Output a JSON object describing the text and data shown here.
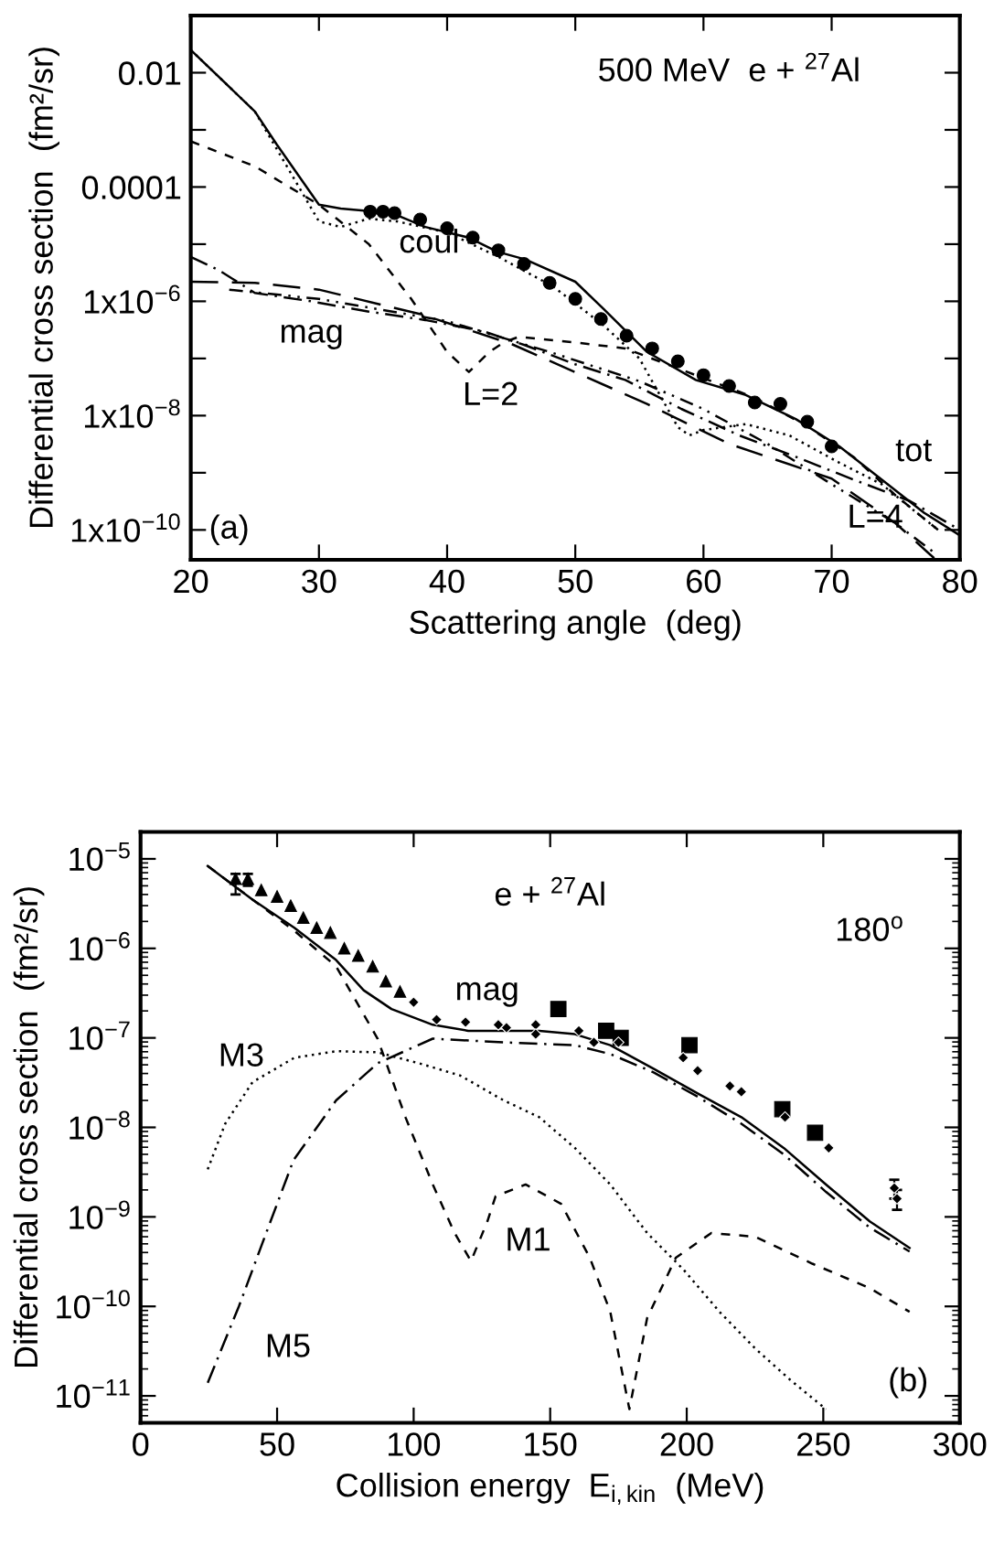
{
  "chart_data": [
    {
      "type": "line",
      "xlabel": "Scattering angle  (deg)",
      "ylabel": "Differential cross section  (fm²/sr)",
      "log": "y",
      "xlim": [
        20,
        80
      ],
      "xticks": [
        20,
        30,
        40,
        50,
        60,
        70,
        80
      ],
      "ylim": [
        3e-11,
        0.1
      ],
      "yticks": [
        {
          "value": 0.1,
          "label": null
        },
        0.01,
        {
          "value": 0.001,
          "label": null
        },
        0.0001,
        {
          "value": 1e-05,
          "label": null
        },
        {
          "value": 1e-06,
          "label": "1x10$^{−6}$"
        },
        {
          "value": 1e-07,
          "label": null
        },
        {
          "value": 1e-08,
          "label": "1x10$^{−8}$"
        },
        {
          "value": 1e-09,
          "label": null
        },
        {
          "value": 1e-10,
          "label": "1x10$^{−10}$"
        }
      ],
      "series": [
        {
          "type": "line",
          "line_style": "solid",
          "color": "#000000",
          "x": [
            20,
            25,
            26.7,
            30,
            31.7,
            33.9,
            36.1,
            38.3,
            41.7,
            43.9,
            46.1,
            50,
            52.2,
            55.6,
            59.4,
            63.3,
            67.2,
            70.6,
            73.9,
            77.2,
            80
          ],
          "values": [
            0.025,
            0.0021,
            0.00056,
            4.9e-05,
            4.2e-05,
            3.8e-05,
            3.2e-05,
            2e-05,
            1.3e-05,
            7.4e-06,
            5.4e-06,
            2.2e-06,
            7.4e-07,
            1.3e-07,
            4.2e-08,
            2.3e-08,
            8.7e-09,
            2.9e-09,
            7.6e-10,
            2e-10,
            8e-11
          ]
        },
        {
          "type": "line",
          "line_style": "dotted",
          "color": "#000000",
          "x": [
            20,
            25,
            30,
            31.7,
            33.9,
            36.1,
            40,
            44,
            48.3,
            52.2,
            55,
            58,
            58.9,
            60,
            63.3,
            66.7,
            70.6,
            73.9,
            76.1,
            78.3
          ],
          "values": [
            0.025,
            0.0021,
            2.5e-05,
            2e-05,
            2.8e-05,
            2.5e-05,
            1.6e-05,
            6e-06,
            1.8e-06,
            3.8e-07,
            1e-07,
            6.3e-09,
            4.5e-09,
            5.6e-09,
            7.1e-09,
            4.5e-09,
            1.5e-09,
            6.3e-10,
            2.5e-10,
            1e-10
          ]
        },
        {
          "type": "line",
          "line_style": "dashed",
          "color": "#000000",
          "x": [
            20,
            25,
            30,
            33.9,
            37.2,
            40,
            41.7,
            43.3,
            44.4,
            45.6,
            50,
            53.9,
            59.4,
            63.9,
            67.8,
            71.7,
            75,
            78.3
          ],
          "values": [
            0.00063,
            0.00023,
            4.9e-05,
            1e-05,
            1.1e-06,
            1.3e-07,
            5.8e-08,
            1.3e-07,
            1.9e-07,
            2.4e-07,
            1.9e-07,
            1.5e-07,
            5.1e-08,
            2.1e-08,
            7.1e-09,
            1.9e-09,
            4e-10,
            1e-10
          ]
        },
        {
          "type": "line",
          "line_style": "dashdot",
          "color": "#000000",
          "x": [
            20,
            22.2,
            25,
            29.4,
            33.9,
            38.3,
            42.8,
            46.1,
            50,
            53.9,
            58.3,
            62.8,
            67.2,
            71.7,
            76.1,
            80
          ],
          "values": [
            6e-06,
            3.5e-06,
            1.4e-06,
            1e-06,
            6.6e-07,
            4.7e-07,
            3e-07,
            1.7e-07,
            7.9e-08,
            4.2e-08,
            1.3e-08,
            4.5e-09,
            1.9e-09,
            7.6e-10,
            3.2e-10,
            1e-10
          ]
        },
        {
          "type": "line",
          "line_style": "longdash",
          "color": "#000000",
          "x": [
            20,
            25,
            30,
            38,
            45,
            55.6,
            62,
            70,
            75,
            78
          ],
          "values": [
            2.2e-06,
            2.1e-06,
            1.6e-06,
            5.9e-07,
            1.8e-07,
            1.6e-08,
            3.2e-09,
            7.9e-10,
            1.3e-10,
            3.2e-11
          ]
        },
        {
          "type": "line",
          "line_style": "dashdotdot",
          "color": "#000000",
          "x": [
            23,
            30,
            40,
            48,
            55,
            60,
            65,
            70,
            75,
            78
          ],
          "values": [
            1.6e-06,
            1.1e-06,
            4.5e-07,
            1.3e-07,
            4e-08,
            1.3e-08,
            3.2e-09,
            6.3e-10,
            1.3e-10,
            4e-11
          ]
        },
        {
          "type": "scatter",
          "marker": "circle",
          "color": "#000000",
          "x": [
            34,
            35,
            35.9,
            37.9,
            40,
            42,
            44,
            46,
            48,
            50,
            52,
            54,
            56,
            58,
            60,
            62,
            64,
            66,
            68.1,
            70
          ],
          "values": [
            3.7e-05,
            3.7e-05,
            3.5e-05,
            2.7e-05,
            1.9e-05,
            1.3e-05,
            7.8e-06,
            4.5e-06,
            2.1e-06,
            1.1e-06,
            4.9e-07,
            2.5e-07,
            1.5e-07,
            8.9e-08,
            5.1e-08,
            3.3e-08,
            1.7e-08,
            1.6e-08,
            7.8e-09,
            2.9e-09
          ]
        }
      ],
      "annotations": [
        "500 MeV  e + $^{27}$Al",
        "coul",
        "mag",
        "L=2",
        "tot",
        "L=4",
        "(a)"
      ]
    },
    {
      "type": "line",
      "xlabel": "Collision energy  E$_{i,kin}$  (MeV)",
      "ylabel": "Differential cross section  (fm²/sr)",
      "log": "y",
      "xlim": [
        0,
        300
      ],
      "xticks": [
        0,
        50,
        100,
        150,
        200,
        250,
        300
      ],
      "ylim": [
        5e-12,
        2e-05
      ],
      "yticks": [
        {
          "value": 1e-05,
          "label": "10$^{−5}$"
        },
        {
          "value": 1e-06,
          "label": "10$^{−6}$"
        },
        {
          "value": 1e-07,
          "label": "10$^{−7}$"
        },
        {
          "value": 1e-08,
          "label": "10$^{−8}$"
        },
        {
          "value": 1e-09,
          "label": "10$^{−9}$"
        },
        {
          "value": 1e-10,
          "label": "10$^{−10}$"
        },
        {
          "value": 1e-11,
          "label": "10$^{−11}$"
        }
      ],
      "series": [
        {
          "type": "line",
          "line_style": "solid",
          "color": "#000000",
          "x": [
            24.6,
            41,
            56.3,
            71.6,
            81.7,
            91.9,
            107,
            120,
            132,
            146,
            159,
            172,
            188,
            204,
            220,
            235.5,
            251,
            267,
            281.6
          ],
          "values": [
            8.3e-06,
            3.5e-06,
            1.7e-06,
            7.4e-07,
            3.4e-07,
            2.1e-07,
            1.4e-07,
            1.2e-07,
            1.2e-07,
            1.2e-07,
            1.1e-07,
            8.3e-08,
            4.5e-08,
            2.4e-08,
            1.3e-08,
            5.9e-09,
            2.3e-09,
            8.9e-10,
            4.5e-10
          ]
        },
        {
          "type": "line",
          "line_style": "dashdot",
          "color": "#000000",
          "x": [
            24.6,
            36,
            46,
            56,
            71.6,
            86.8,
            107,
            133,
            159,
            172,
            188,
            204,
            220,
            235.5,
            251,
            267,
            281.6
          ],
          "values": [
            1.4e-11,
            1e-10,
            6.6e-10,
            4.3e-09,
            2e-08,
            5.2e-08,
            9.8e-08,
            8.9e-08,
            8.3e-08,
            6.6e-08,
            4.1e-08,
            2.2e-08,
            1.1e-08,
            5e-09,
            1.9e-09,
            7.6e-10,
            4.1e-10
          ]
        },
        {
          "type": "line",
          "line_style": "dotted",
          "color": "#000000",
          "x": [
            24.6,
            31,
            41,
            56.3,
            71.6,
            86.8,
            102,
            117,
            133,
            146,
            159,
            172,
            185.5,
            198.7,
            212,
            225,
            238,
            251
          ],
          "values": [
            3.4e-09,
            1.1e-08,
            3.2e-08,
            6e-08,
            7.1e-08,
            6.9e-08,
            5.2e-08,
            3.8e-08,
            2e-08,
            1.3e-08,
            5.9e-09,
            2.3e-09,
            6.6e-10,
            2.6e-10,
            8.7e-11,
            3.4e-11,
            1.5e-11,
            7.1e-12
          ]
        },
        {
          "type": "line",
          "line_style": "dashed",
          "color": "#000000",
          "x": [
            24.6,
            41,
            56,
            71.6,
            86.8,
            97,
            107,
            115,
            121,
            127,
            130,
            141,
            154,
            164.5,
            172,
            179,
            185.5,
            196,
            209,
            225,
            246,
            267,
            281.6
          ],
          "values": [
            8.3e-06,
            3.5e-06,
            1.6e-06,
            6.3e-07,
            9.8e-08,
            1.3e-08,
            2.3e-09,
            6.6e-10,
            3.2e-10,
            8.9e-10,
            1.7e-09,
            2.3e-09,
            1.4e-09,
            3.5e-10,
            8.7e-11,
            7.1e-12,
            7.4e-11,
            3.5e-10,
            6.6e-10,
            6e-10,
            3e-10,
            1.6e-10,
            8.7e-11
          ]
        },
        {
          "type": "scatter",
          "marker": "triangle",
          "color": "#000000",
          "x": [
            34.8,
            39.3,
            44.2,
            50,
            55,
            59.6,
            64.5,
            69.5,
            74.6,
            79.7,
            85,
            89.8,
            95
          ],
          "values": [
            6e-06,
            6e-06,
            4.5e-06,
            3.8e-06,
            3e-06,
            2.2e-06,
            1.7e-06,
            1.5e-06,
            1e-06,
            8.3e-07,
            6.3e-07,
            4.3e-07,
            3.3e-07
          ],
          "errors": [
            [
              4e-06,
              6.8e-06
            ],
            [
              5e-06,
              6.8e-06
            ],
            null,
            null,
            null,
            null,
            null,
            null,
            null,
            null,
            null,
            null,
            null
          ]
        },
        {
          "type": "scatter",
          "marker": "diamond",
          "color": "#000000",
          "x": [
            100,
            108.4,
            119,
            131,
            134,
            144.7,
            144.7,
            160.5,
            166,
            175,
            198.7,
            204,
            215.8,
            220,
            236,
            252,
            276,
            277
          ],
          "values": [
            2.5e-07,
            1.6e-07,
            1.5e-07,
            1.4e-07,
            1.3e-07,
            1.4e-07,
            1.1e-07,
            1.2e-07,
            8.9e-08,
            8.9e-08,
            6e-08,
            4.3e-08,
            2.9e-08,
            2.5e-08,
            1.3e-08,
            5.9e-09,
            2.1e-09,
            1.6e-09
          ],
          "errors": [
            null,
            null,
            null,
            null,
            null,
            null,
            null,
            null,
            null,
            null,
            null,
            null,
            null,
            null,
            null,
            null,
            [
              1.6e-09,
              2.6e-09
            ],
            [
              1.2e-09,
              2e-09
            ]
          ]
        },
        {
          "type": "scatter",
          "marker": "square",
          "color": "#000000",
          "x": [
            153,
            170.5,
            175.8,
            201,
            235,
            247
          ],
          "values": [
            2.1e-07,
            1.2e-07,
            1e-07,
            8.3e-08,
            1.6e-08,
            8.7e-09
          ]
        }
      ],
      "annotations": [
        "e + $^{27}$Al",
        "180$^{o}$",
        "mag",
        "M3",
        "M1",
        "M5",
        "(b)"
      ]
    }
  ]
}
